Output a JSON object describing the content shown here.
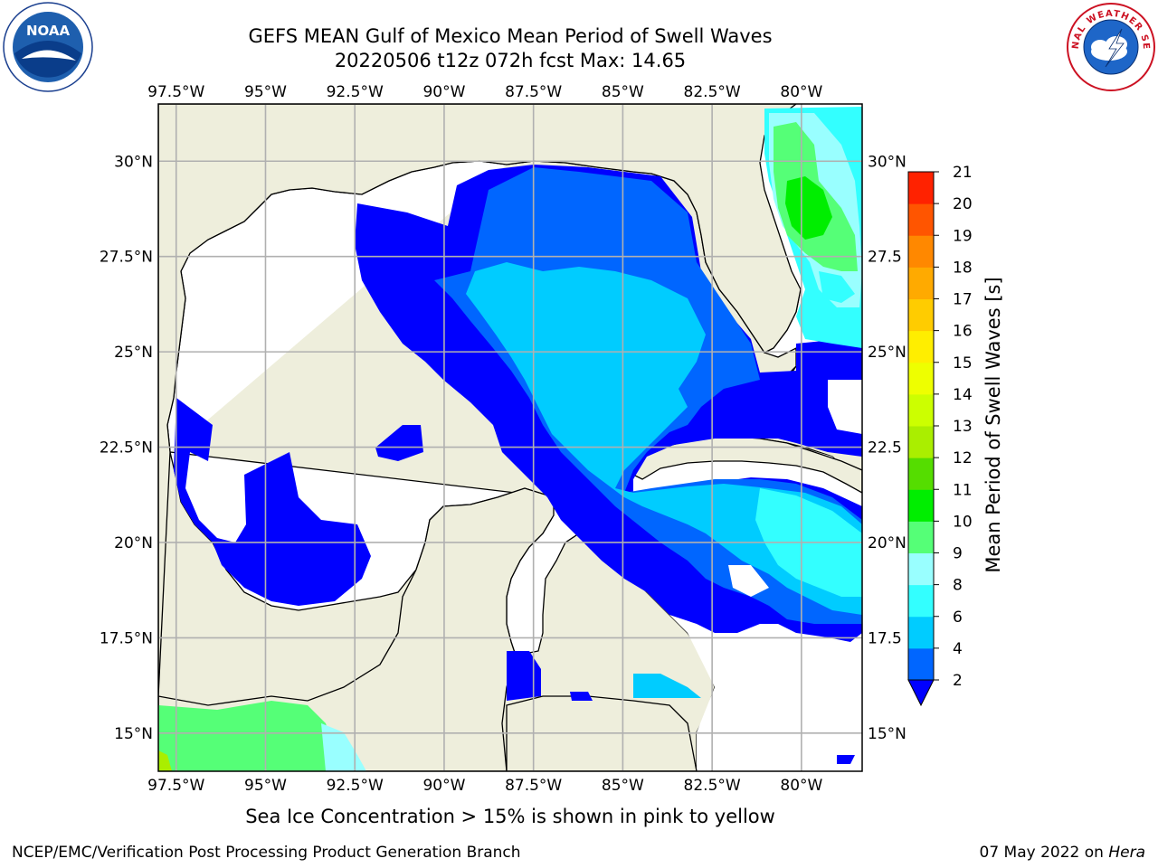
{
  "chart_data": {
    "type": "heatmap",
    "title": "GEFS MEAN Gulf of Mexico Mean Period of Swell Waves",
    "subtitle": "20220506 t12z 072h fcst   Max: 14.65",
    "x_ticks": [
      "97.5°W",
      "95°W",
      "92.5°W",
      "90°W",
      "87.5°W",
      "85°W",
      "82.5°W",
      "80°W"
    ],
    "y_ticks_left": [
      "30°N",
      "27.5°N",
      "25°N",
      "22.5°N",
      "20°N",
      "17.5°N",
      "15°N"
    ],
    "y_ticks_right": [
      "30°N",
      "27.5",
      "25°N",
      "22.5",
      "20°N",
      "17.5",
      "15°N"
    ],
    "x_values": [
      -97.5,
      -95,
      -92.5,
      -90,
      -87.5,
      -85,
      -82.5,
      -80
    ],
    "y_values": [
      30,
      27.5,
      25,
      22.5,
      20,
      17.5,
      15
    ],
    "lon_range": [
      -98,
      -78.3
    ],
    "lat_range": [
      14,
      31.5
    ],
    "grid": true,
    "colorbar": {
      "label": "Mean Period of Swell Waves [s]",
      "levels": [
        2,
        4,
        6,
        8,
        9,
        10,
        11,
        12,
        13,
        14,
        15,
        16,
        17,
        18,
        19,
        20,
        21
      ],
      "tick_labels": [
        "2",
        "4",
        "6",
        "8",
        "9",
        "10",
        "11",
        "12",
        "13",
        "14",
        "15",
        "16",
        "17",
        "18",
        "19",
        "20",
        "21"
      ],
      "colors": [
        "#0066ff",
        "#00ccff",
        "#33ffff",
        "#99ffff",
        "#55ff77",
        "#00ee00",
        "#55dd00",
        "#aaee00",
        "#ccff00",
        "#eeff00",
        "#ffee00",
        "#ffcc00",
        "#ffaa00",
        "#ff8800",
        "#ff5500",
        "#ff2200"
      ],
      "under_color": "#0000ff",
      "extend": "min"
    }
  },
  "footer": {
    "note": "Sea Ice Concentration > 15% is shown in pink to yellow",
    "credit": "NCEP/EMC/Verification Post Processing Product Generation Branch",
    "date": "07 May 2022 on",
    "host": "Hera"
  },
  "logos": {
    "left": "NOAA",
    "right_text": "NATIONAL WEATHER SERVICE"
  },
  "colors": {
    "land": "#eeeedc",
    "water_low": "#ffffff",
    "grid": "#b0b0b0"
  }
}
